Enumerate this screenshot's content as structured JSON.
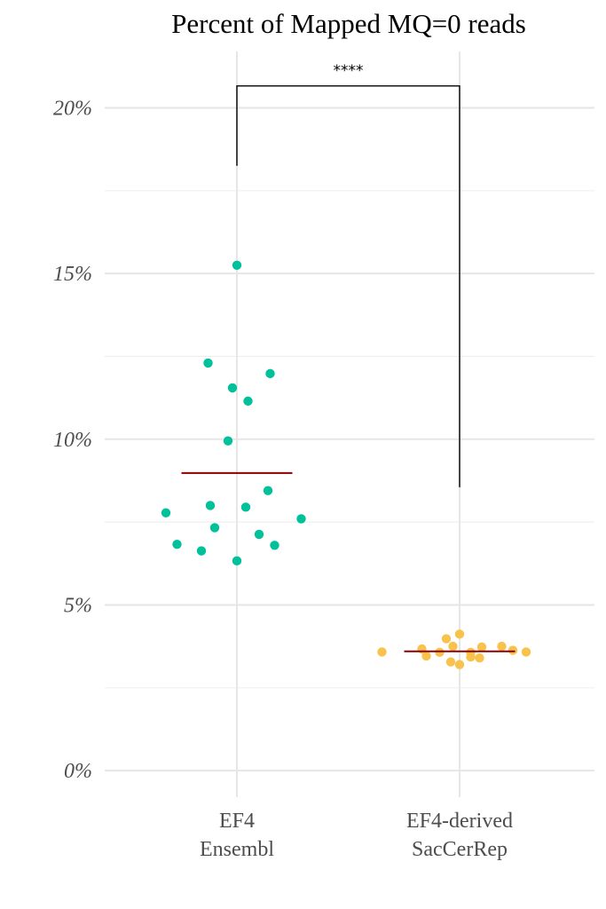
{
  "chart_data": {
    "type": "scatter",
    "title": "Percent of Mapped MQ=0 reads",
    "xlabel": "",
    "ylabel": "",
    "ylim": [
      -0.008,
      0.217
    ],
    "yticks": [
      0,
      0.05,
      0.1,
      0.15,
      0.2
    ],
    "ytick_labels": [
      "0%",
      "5%",
      "10%",
      "15%",
      "20%"
    ],
    "grid": true,
    "categories": [
      {
        "line1": "EF4",
        "line2": "Ensembl"
      },
      {
        "line1": "EF4-derived",
        "line2": "SacCerRep"
      }
    ],
    "groups": [
      {
        "color": "#00c19a",
        "mean": 0.0898,
        "points": [
          {
            "x": 0.0,
            "y": 0.1525
          },
          {
            "x": -0.13,
            "y": 0.123
          },
          {
            "x": 0.15,
            "y": 0.1198
          },
          {
            "x": -0.02,
            "y": 0.1155
          },
          {
            "x": 0.05,
            "y": 0.1115
          },
          {
            "x": -0.04,
            "y": 0.0995
          },
          {
            "x": 0.14,
            "y": 0.0845
          },
          {
            "x": -0.12,
            "y": 0.08
          },
          {
            "x": 0.04,
            "y": 0.0795
          },
          {
            "x": -0.32,
            "y": 0.0778
          },
          {
            "x": 0.29,
            "y": 0.076
          },
          {
            "x": -0.1,
            "y": 0.0733
          },
          {
            "x": 0.1,
            "y": 0.0713
          },
          {
            "x": -0.27,
            "y": 0.0683
          },
          {
            "x": 0.17,
            "y": 0.068
          },
          {
            "x": -0.16,
            "y": 0.0663
          },
          {
            "x": 0.0,
            "y": 0.0633
          }
        ]
      },
      {
        "color": "#f8c24c",
        "mean": 0.036,
        "points": [
          {
            "x": 0.0,
            "y": 0.0412
          },
          {
            "x": -0.06,
            "y": 0.0398
          },
          {
            "x": -0.03,
            "y": 0.0375
          },
          {
            "x": 0.1,
            "y": 0.0373
          },
          {
            "x": 0.19,
            "y": 0.0375
          },
          {
            "x": -0.17,
            "y": 0.0367
          },
          {
            "x": 0.24,
            "y": 0.0363
          },
          {
            "x": -0.35,
            "y": 0.0358
          },
          {
            "x": -0.09,
            "y": 0.0357
          },
          {
            "x": 0.05,
            "y": 0.0357
          },
          {
            "x": 0.3,
            "y": 0.0358
          },
          {
            "x": -0.15,
            "y": 0.0346
          },
          {
            "x": 0.05,
            "y": 0.0343
          },
          {
            "x": 0.09,
            "y": 0.034
          },
          {
            "x": -0.04,
            "y": 0.0328
          },
          {
            "x": 0.0,
            "y": 0.032
          }
        ]
      }
    ],
    "mean_color": "#8b0000",
    "comparison": {
      "label": "****",
      "y_top": 0.2066,
      "y_left": 0.1825,
      "y_right": 0.0855
    }
  }
}
